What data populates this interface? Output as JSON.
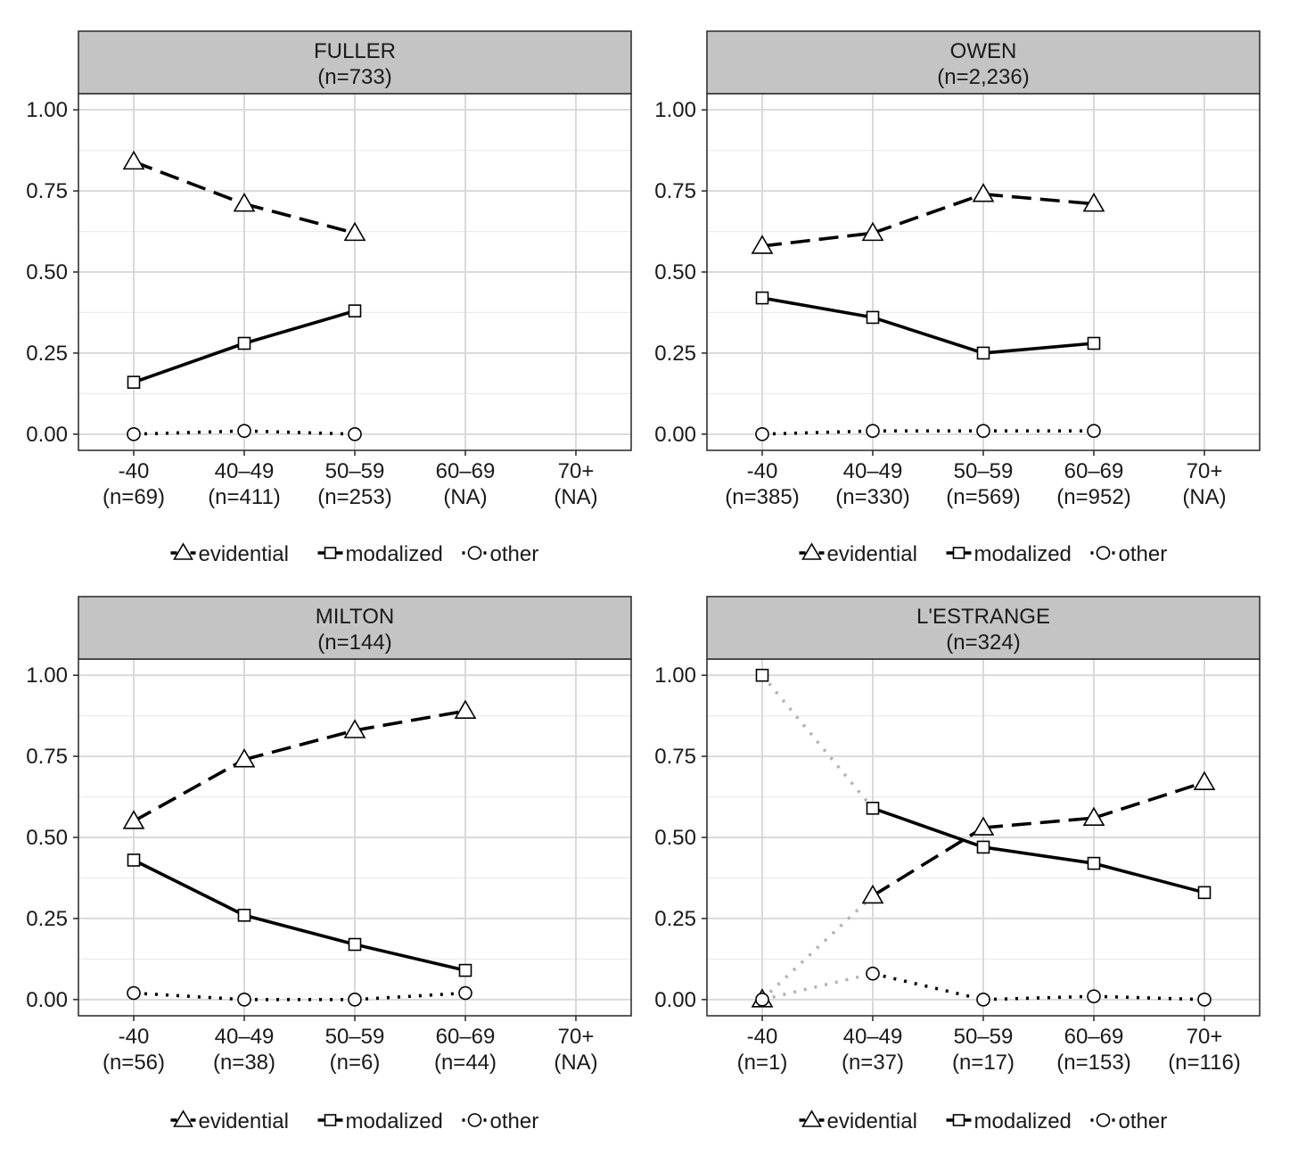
{
  "legend_labels": [
    "evidential",
    "modalized",
    "other"
  ],
  "chart_data": [
    {
      "type": "line",
      "title": "FULLER",
      "subtitle": "(n=733)",
      "categories": [
        "-40",
        "40–49",
        "50–59",
        "60–69",
        "70+"
      ],
      "category_counts": [
        "(n=69)",
        "(n=411)",
        "(n=253)",
        "(NA)",
        "(NA)"
      ],
      "y_ticks": [
        "0.00",
        "0.25",
        "0.50",
        "0.75",
        "1.00"
      ],
      "ylim": [
        -0.05,
        1.05
      ],
      "grid": true,
      "legend": "bottom",
      "series": [
        {
          "name": "evidential",
          "marker": "triangle",
          "line": "dashed",
          "values": [
            0.84,
            0.71,
            0.62,
            null,
            null
          ]
        },
        {
          "name": "modalized",
          "marker": "square",
          "line": "solid",
          "values": [
            0.16,
            0.28,
            0.38,
            null,
            null
          ]
        },
        {
          "name": "other",
          "marker": "circle",
          "line": "dotted",
          "values": [
            0.0,
            0.01,
            0.0,
            null,
            null
          ]
        }
      ]
    },
    {
      "type": "line",
      "title": "OWEN",
      "subtitle": "(n=2,236)",
      "categories": [
        "-40",
        "40–49",
        "50–59",
        "60–69",
        "70+"
      ],
      "category_counts": [
        "(n=385)",
        "(n=330)",
        "(n=569)",
        "(n=952)",
        "(NA)"
      ],
      "y_ticks": [
        "0.00",
        "0.25",
        "0.50",
        "0.75",
        "1.00"
      ],
      "ylim": [
        -0.05,
        1.05
      ],
      "grid": true,
      "legend": "bottom",
      "series": [
        {
          "name": "evidential",
          "marker": "triangle",
          "line": "dashed",
          "values": [
            0.58,
            0.62,
            0.74,
            0.71,
            null
          ]
        },
        {
          "name": "modalized",
          "marker": "square",
          "line": "solid",
          "values": [
            0.42,
            0.36,
            0.25,
            0.28,
            null
          ]
        },
        {
          "name": "other",
          "marker": "circle",
          "line": "dotted",
          "values": [
            0.0,
            0.01,
            0.01,
            0.01,
            null
          ]
        }
      ]
    },
    {
      "type": "line",
      "title": "MILTON",
      "subtitle": "(n=144)",
      "categories": [
        "-40",
        "40–49",
        "50–59",
        "60–69",
        "70+"
      ],
      "category_counts": [
        "(n=56)",
        "(n=38)",
        "(n=6)",
        "(n=44)",
        "(NA)"
      ],
      "y_ticks": [
        "0.00",
        "0.25",
        "0.50",
        "0.75",
        "1.00"
      ],
      "ylim": [
        -0.05,
        1.05
      ],
      "grid": true,
      "legend": "bottom",
      "series": [
        {
          "name": "evidential",
          "marker": "triangle",
          "line": "dashed",
          "values": [
            0.55,
            0.74,
            0.83,
            0.89,
            null
          ]
        },
        {
          "name": "modalized",
          "marker": "square",
          "line": "solid",
          "values": [
            0.43,
            0.26,
            0.17,
            0.09,
            null
          ]
        },
        {
          "name": "other",
          "marker": "circle",
          "line": "dotted",
          "values": [
            0.02,
            0.0,
            0.0,
            0.02,
            null
          ]
        }
      ]
    },
    {
      "type": "line",
      "title": "L'ESTRANGE",
      "subtitle": "(n=324)",
      "categories": [
        "-40",
        "40–49",
        "50–59",
        "60–69",
        "70+"
      ],
      "category_counts": [
        "(n=1)",
        "(n=37)",
        "(n=17)",
        "(n=153)",
        "(n=116)"
      ],
      "y_ticks": [
        "0.00",
        "0.25",
        "0.50",
        "0.75",
        "1.00"
      ],
      "ylim": [
        -0.05,
        1.05
      ],
      "grid": true,
      "legend": "bottom",
      "faded_first_segment": true,
      "series": [
        {
          "name": "evidential",
          "marker": "triangle",
          "line": "dashed",
          "values": [
            0.0,
            0.32,
            0.53,
            0.56,
            0.67
          ]
        },
        {
          "name": "modalized",
          "marker": "square",
          "line": "solid",
          "values": [
            1.0,
            0.59,
            0.47,
            0.42,
            0.33
          ]
        },
        {
          "name": "other",
          "marker": "circle",
          "line": "dotted",
          "values": [
            0.0,
            0.08,
            0.0,
            0.01,
            0.0
          ]
        }
      ]
    }
  ]
}
